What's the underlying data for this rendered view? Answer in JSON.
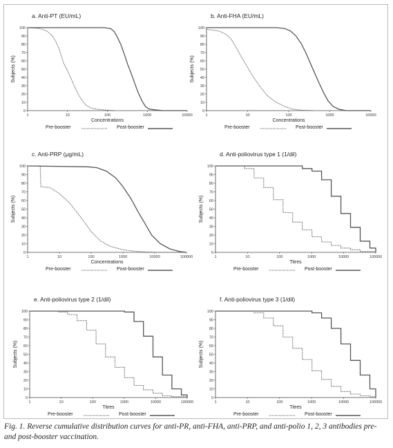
{
  "caption": "Fig. 1. Reverse cumulative distribution curves for anti-PR, anti-FHA, anti-PRP, and anti-polio 1, 2, 3 antibodies pre- and post-booster vaccination.",
  "legend": {
    "pre": "Pre-booster",
    "post": "Post-booster"
  },
  "colors": {
    "pre": "#555555",
    "post": "#555555",
    "axis": "#444444",
    "frame": "#b9b9b9"
  },
  "chart_data": [
    {
      "type": "line",
      "title": "a. Anti-PT (EU/mL)",
      "xlabel": "Concentrations",
      "ylabel": "Subjects (%)",
      "x_scale": "log",
      "xlim": [
        1,
        10000
      ],
      "ylim": [
        0,
        100
      ],
      "x_ticks": [
        "1",
        "10",
        "100",
        "1000",
        "10000"
      ],
      "y_ticks": [
        "0",
        "10",
        "20",
        "30",
        "40",
        "50",
        "60",
        "70",
        "80",
        "90",
        "100"
      ],
      "series": [
        {
          "name": "Pre-booster",
          "style": "dotted",
          "step": false,
          "x": [
            1,
            2,
            3,
            4,
            5,
            6,
            7,
            8,
            10,
            13,
            16,
            20,
            25,
            30,
            40,
            60,
            100,
            150
          ],
          "y": [
            100,
            99,
            96,
            91,
            84,
            76,
            66,
            57,
            48,
            36,
            26,
            17,
            10,
            6,
            3,
            1.5,
            0.5,
            0
          ]
        },
        {
          "name": "Post-booster",
          "style": "solid",
          "step": false,
          "x": [
            1,
            80,
            120,
            150,
            180,
            220,
            270,
            320,
            400,
            500,
            600,
            750,
            900,
            1100,
            1500,
            2500,
            10000
          ],
          "y": [
            100,
            100,
            99,
            95,
            88,
            79,
            67,
            56,
            44,
            31,
            21,
            11,
            5,
            2,
            1,
            0,
            0
          ]
        }
      ]
    },
    {
      "type": "line",
      "title": "b. Anti-FHA (EU/mL)",
      "xlabel": "Concentrations",
      "ylabel": "Subjects (%)",
      "x_scale": "log",
      "xlim": [
        1,
        10000
      ],
      "ylim": [
        0,
        100
      ],
      "x_ticks": [
        "1",
        "10",
        "100",
        "1000",
        "10000"
      ],
      "y_ticks": [
        "0",
        "10",
        "20",
        "30",
        "40",
        "50",
        "60",
        "70",
        "80",
        "90",
        "100"
      ],
      "series": [
        {
          "name": "Pre-booster",
          "style": "dotted",
          "step": false,
          "x": [
            1,
            2,
            3,
            4,
            5,
            7,
            10,
            14,
            20,
            30,
            50,
            80,
            120,
            200,
            400
          ],
          "y": [
            98,
            96,
            92,
            86,
            78,
            65,
            52,
            40,
            29,
            18,
            10,
            5,
            2,
            0.5,
            0
          ]
        },
        {
          "name": "Post-booster",
          "style": "solid",
          "step": false,
          "x": [
            1,
            50,
            80,
            110,
            150,
            200,
            260,
            330,
            430,
            550,
            700,
            900,
            1200,
            1700,
            2500,
            10000
          ],
          "y": [
            100,
            100,
            99,
            96,
            90,
            81,
            70,
            58,
            45,
            33,
            22,
            12,
            5,
            1.5,
            0,
            0
          ]
        }
      ]
    },
    {
      "type": "line",
      "title": "c. Anti-PRP (μg/mL)",
      "xlabel": "Concentrations",
      "ylabel": "Subjects (%)",
      "x_scale": "log",
      "xlim": [
        1,
        100000
      ],
      "ylim": [
        0,
        100
      ],
      "x_ticks": [
        "1",
        "10",
        "100",
        "1000",
        "10000",
        "100000"
      ],
      "y_ticks": [
        "0",
        "10",
        "20",
        "30",
        "40",
        "50",
        "60",
        "70",
        "80",
        "90",
        "100"
      ],
      "series": [
        {
          "name": "Pre-booster",
          "style": "dotted",
          "step": false,
          "x": [
            1,
            2.5,
            2.6,
            5,
            10,
            20,
            40,
            70,
            100,
            200,
            400,
            1000,
            3000,
            10000,
            100000
          ],
          "y": [
            100,
            100,
            76,
            75,
            68,
            58,
            44,
            32,
            24,
            13,
            7,
            3,
            1,
            0,
            0
          ]
        },
        {
          "name": "Post-booster",
          "style": "solid",
          "step": false,
          "x": [
            1,
            80,
            150,
            300,
            600,
            1000,
            1800,
            3000,
            5000,
            8000,
            15000,
            30000,
            60000,
            100000
          ],
          "y": [
            100,
            99,
            98,
            94,
            86,
            76,
            62,
            47,
            33,
            20,
            10,
            4,
            1,
            0
          ]
        }
      ]
    },
    {
      "type": "line",
      "title": "d. Anti-poliovirus type 1 (1/dil)",
      "xlabel": "Titres",
      "ylabel": "Subjects (%)",
      "x_scale": "log",
      "xlim": [
        1,
        100000
      ],
      "ylim": [
        0,
        100
      ],
      "x_ticks": [
        "1",
        "10",
        "100",
        "1000",
        "10000",
        "100000"
      ],
      "y_ticks": [
        "0",
        "10",
        "20",
        "30",
        "40",
        "50",
        "60",
        "70",
        "80",
        "90",
        "100"
      ],
      "series": [
        {
          "name": "Pre-booster",
          "style": "dotted",
          "step": true,
          "x": [
            1,
            8,
            16,
            32,
            64,
            128,
            256,
            512,
            1024,
            2048,
            4096,
            8192,
            16384,
            32768,
            100000
          ],
          "y": [
            100,
            97,
            86,
            75,
            61,
            46,
            35,
            26,
            18,
            12,
            8,
            5,
            3,
            1,
            0
          ]
        },
        {
          "name": "Post-booster",
          "style": "solid",
          "step": true,
          "x": [
            1,
            256,
            512,
            1024,
            2048,
            4096,
            8192,
            16384,
            32768,
            65536,
            100000
          ],
          "y": [
            100,
            100,
            97,
            94,
            84,
            65,
            45,
            29,
            13,
            5,
            0
          ]
        }
      ]
    },
    {
      "type": "line",
      "title": "e. Anti-poliovirus type 2 (1/dil)",
      "xlabel": "Titres",
      "ylabel": "Subjects (%)",
      "x_scale": "log",
      "xlim": [
        1,
        100000
      ],
      "ylim": [
        0,
        100
      ],
      "x_ticks": [
        "1",
        "10",
        "100",
        "1000",
        "10000",
        "100000"
      ],
      "y_ticks": [
        "0",
        "10",
        "20",
        "30",
        "40",
        "50",
        "60",
        "70",
        "80",
        "90",
        "100"
      ],
      "series": [
        {
          "name": "Pre-booster",
          "style": "dotted",
          "step": true,
          "x": [
            1,
            8,
            16,
            32,
            64,
            128,
            256,
            512,
            1024,
            2048,
            4096,
            8192,
            16384,
            32768,
            100000
          ],
          "y": [
            100,
            99,
            96,
            89,
            78,
            62,
            47,
            35,
            23,
            14,
            9,
            5,
            2,
            1,
            0
          ]
        },
        {
          "name": "Post-booster",
          "style": "solid",
          "step": true,
          "x": [
            1,
            1024,
            2048,
            4096,
            8192,
            16384,
            32768,
            65536,
            100000
          ],
          "y": [
            100,
            99,
            88,
            71,
            47,
            26,
            10,
            3,
            0
          ]
        }
      ]
    },
    {
      "type": "line",
      "title": "f. Anti-poliovirus type 3 (1/dil)",
      "xlabel": "Titres",
      "ylabel": "Subjects (%)",
      "x_scale": "log",
      "xlim": [
        1,
        100000
      ],
      "ylim": [
        0,
        100
      ],
      "x_ticks": [
        "1",
        "10",
        "100",
        "1000",
        "10000",
        "100000"
      ],
      "y_ticks": [
        "0",
        "10",
        "20",
        "30",
        "40",
        "50",
        "60",
        "70",
        "80",
        "90",
        "100"
      ],
      "series": [
        {
          "name": "Pre-booster",
          "style": "dotted",
          "step": true,
          "x": [
            1,
            16,
            32,
            64,
            128,
            256,
            512,
            1024,
            2048,
            4096,
            8192,
            16384,
            32768,
            65536,
            100000
          ],
          "y": [
            100,
            98,
            92,
            83,
            70,
            57,
            44,
            31,
            21,
            13,
            7,
            4,
            2,
            1,
            0
          ]
        },
        {
          "name": "Post-booster",
          "style": "solid",
          "step": true,
          "x": [
            1,
            1024,
            2048,
            4096,
            8192,
            16384,
            32768,
            65536,
            100000
          ],
          "y": [
            100,
            98,
            92,
            80,
            62,
            43,
            26,
            10,
            0
          ]
        }
      ]
    }
  ]
}
